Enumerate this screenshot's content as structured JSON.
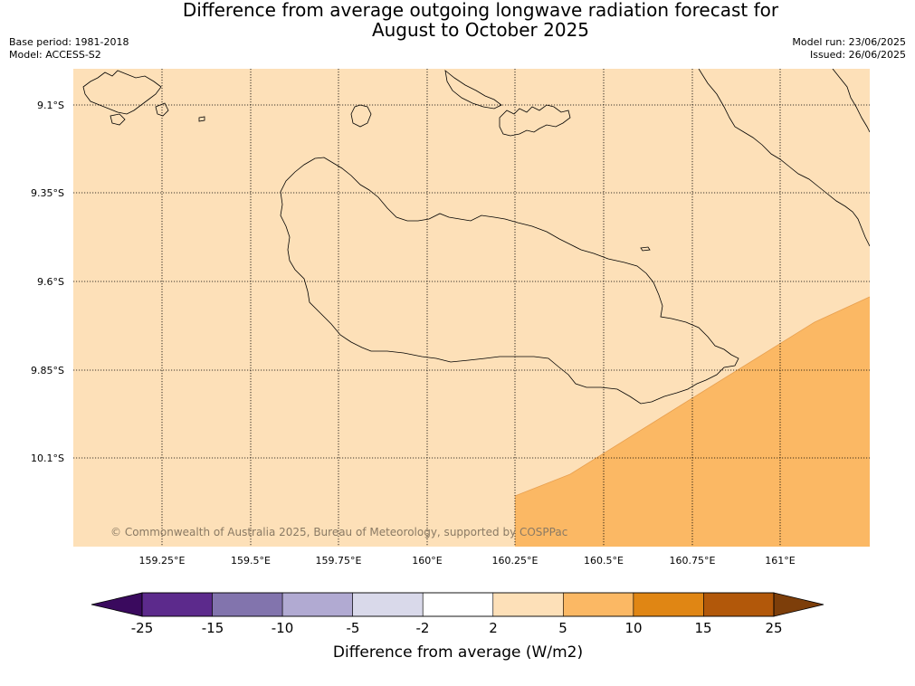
{
  "title": {
    "line1": "Difference from average outgoing longwave radiation forecast for",
    "line2": "August to October 2025"
  },
  "meta": {
    "base_period": "Base period: 1981-2018",
    "model": "Model: ACCESS-S2",
    "model_run": "Model run: 23/06/2025",
    "issued": "Issued: 26/06/2025"
  },
  "map": {
    "lat_labels": [
      "9.1°S",
      "9.35°S",
      "9.6°S",
      "9.85°S",
      "10.1°S"
    ],
    "lon_labels": [
      "159.25°E",
      "159.5°E",
      "159.75°E",
      "160°E",
      "160.25°E",
      "160.5°E",
      "160.75°E",
      "161°E"
    ],
    "copyright": "© Commonwealth of Australia 2025, Bureau of Meteorology, supported by COSPPac",
    "background_category_color": "#fde0b8",
    "anomaly_region_color": "#fbb864"
  },
  "colorbar": {
    "ticks": [
      "-25",
      "-15",
      "-10",
      "-5",
      "-2",
      "2",
      "5",
      "10",
      "15",
      "25"
    ],
    "colors": [
      "#3a0a5e",
      "#5c2a8c",
      "#8274ad",
      "#b1aad2",
      "#d9d9ea",
      "#ffffff",
      "#fde0b8",
      "#fbb864",
      "#e08614",
      "#b2580a",
      "#7d3e0a"
    ],
    "label": "Difference from average (W/m2)"
  }
}
